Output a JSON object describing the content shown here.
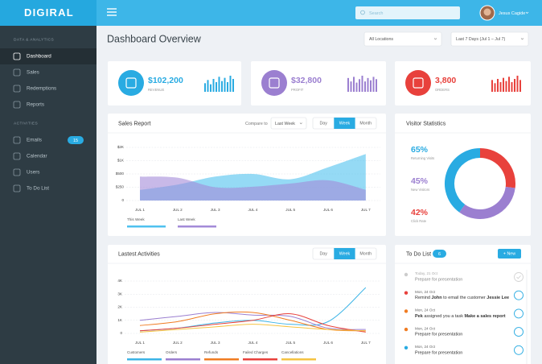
{
  "sidebar": {
    "logo": "DIGIRAL",
    "sections": [
      {
        "title": "DATA & ANALYTICS",
        "items": [
          {
            "label": "Dashboard",
            "active": true
          },
          {
            "label": "Sales"
          },
          {
            "label": "Redemptions"
          },
          {
            "label": "Reports"
          }
        ]
      },
      {
        "title": "ACTIVITIES",
        "items": [
          {
            "label": "Emails",
            "badge": 15
          },
          {
            "label": "Calendar"
          },
          {
            "label": "Users"
          },
          {
            "label": "To Do List"
          }
        ]
      }
    ]
  },
  "topbar": {
    "search_placeholder": "Search",
    "user_name": "Jesus Cagide"
  },
  "header": {
    "title": "Dashboard Overview",
    "filters": [
      "All Locations",
      "Last 7 Days (Jul 1 – Jul 7)"
    ]
  },
  "stats": [
    {
      "value": "$102,200",
      "label": "REVENUE",
      "color": "#29abe2",
      "trend": [
        8,
        11,
        7,
        12,
        9,
        14,
        10,
        13,
        9,
        15,
        12
      ]
    },
    {
      "value": "$32,800",
      "label": "PROFIT",
      "color": "#9b7fd0",
      "trend": [
        12,
        9,
        13,
        8,
        11,
        14,
        9,
        12,
        10,
        13,
        11
      ]
    },
    {
      "value": "3,800",
      "label": "ORDERS",
      "color": "#e8413c",
      "trend": [
        11,
        8,
        12,
        9,
        13,
        10,
        14,
        9,
        12,
        15,
        11
      ]
    }
  ],
  "sales_report": {
    "title": "Sales Report",
    "compare_label": "Compare to",
    "compare_value": "Last Week",
    "tabs": [
      "Day",
      "Week",
      "Month"
    ],
    "active_tab": 1,
    "chart": {
      "type": "area",
      "x": [
        "JUL 1",
        "JUL 2",
        "JUL 3",
        "JUL 4",
        "JUL 5",
        "JUL 6",
        "JUL 7"
      ],
      "series": [
        {
          "name": "This Week",
          "color": "#4fc1ef",
          "values": [
            200,
            300,
            450,
            500,
            400,
            750,
            1500
          ]
        },
        {
          "name": "Last Week",
          "color": "#a38bd8",
          "values": [
            450,
            430,
            250,
            260,
            320,
            380,
            200
          ]
        }
      ],
      "ylim": [
        0,
        2000
      ],
      "yticks": [
        0,
        {
          "value": 250,
          "label": "$250"
        },
        {
          "value": 500,
          "label": "$500"
        },
        {
          "value": 1000,
          "label": "$1K"
        },
        {
          "value": 2000,
          "label": "$2K"
        }
      ],
      "grid": true
    }
  },
  "visitor_statistics": {
    "title": "Visitor Statistics",
    "metrics": [
      {
        "value": "65%",
        "label": "Returning Visits",
        "color": "#29abe2"
      },
      {
        "value": "45%",
        "label": "New Visitors",
        "color": "#9b7fd0"
      },
      {
        "value": "42%",
        "label": "Click Rate",
        "color": "#e8413c"
      }
    ],
    "donut": [
      {
        "value": 27,
        "color": "#e8413c"
      },
      {
        "value": 33,
        "color": "#9b7fd0"
      },
      {
        "value": 40,
        "color": "#29abe2"
      }
    ]
  },
  "latest_activities": {
    "title": "Lastest Activities",
    "tabs": [
      "Day",
      "Week",
      "Month"
    ],
    "active_tab": 1,
    "chart": {
      "type": "line",
      "x": [
        "JUL 1",
        "JUL 2",
        "JUL 3",
        "JUL 4",
        "JUL 5",
        "JUL 6",
        "JUL 7"
      ],
      "series": [
        {
          "name": "Customers",
          "color": "#3cb4e6",
          "values": [
            200,
            400,
            800,
            1000,
            700,
            900,
            3500
          ]
        },
        {
          "name": "Orders",
          "color": "#9b7fd0",
          "values": [
            1000,
            1300,
            1600,
            1400,
            1300,
            400,
            300
          ]
        },
        {
          "name": "Refunds",
          "color": "#f07c22",
          "values": [
            600,
            900,
            1500,
            1600,
            1000,
            300,
            200
          ]
        },
        {
          "name": "Failed Charges",
          "color": "#e8413c",
          "values": [
            200,
            400,
            700,
            1000,
            1500,
            600,
            100
          ]
        },
        {
          "name": "Cancellations",
          "color": "#f5c342",
          "values": [
            100,
            300,
            500,
            700,
            500,
            300,
            200
          ]
        }
      ],
      "ylim": [
        0,
        4000
      ],
      "yticks": [
        0,
        {
          "value": 1000,
          "label": "1K"
        },
        {
          "value": 2000,
          "label": "2K"
        },
        {
          "value": 3000,
          "label": "3K"
        },
        {
          "value": 4000,
          "label": "4K"
        }
      ],
      "grid": true
    }
  },
  "todo": {
    "title": "To Do List",
    "count": 6,
    "new_button": "+ New",
    "items": [
      {
        "date": "Today, 21 Oct",
        "color": "#cccccc",
        "done": true,
        "text": [
          {
            "text": "Prepare for presentation",
            "bold": false
          }
        ]
      },
      {
        "date": "Mon, 24 Oct",
        "color": "#e8413c",
        "done": false,
        "text": [
          {
            "text": "Remind ",
            "bold": false
          },
          {
            "text": "John",
            "bold": true
          },
          {
            "text": " to email the customer ",
            "bold": false
          },
          {
            "text": "Jessie Lee",
            "bold": true
          }
        ]
      },
      {
        "date": "Mon, 24 Oct",
        "color": "#f07c22",
        "done": false,
        "text": [
          {
            "text": "Pek",
            "bold": true
          },
          {
            "text": " assigned you a task ",
            "bold": false
          },
          {
            "text": "Make a sales report",
            "bold": true
          }
        ]
      },
      {
        "date": "Mon, 24 Oct",
        "color": "#f07c22",
        "done": false,
        "text": [
          {
            "text": "Prepare for presentation",
            "bold": false
          }
        ]
      },
      {
        "date": "Mon, 24 Oct",
        "color": "#29abe2",
        "done": false,
        "text": [
          {
            "text": "Prepare for presentation",
            "bold": false
          }
        ]
      }
    ]
  }
}
